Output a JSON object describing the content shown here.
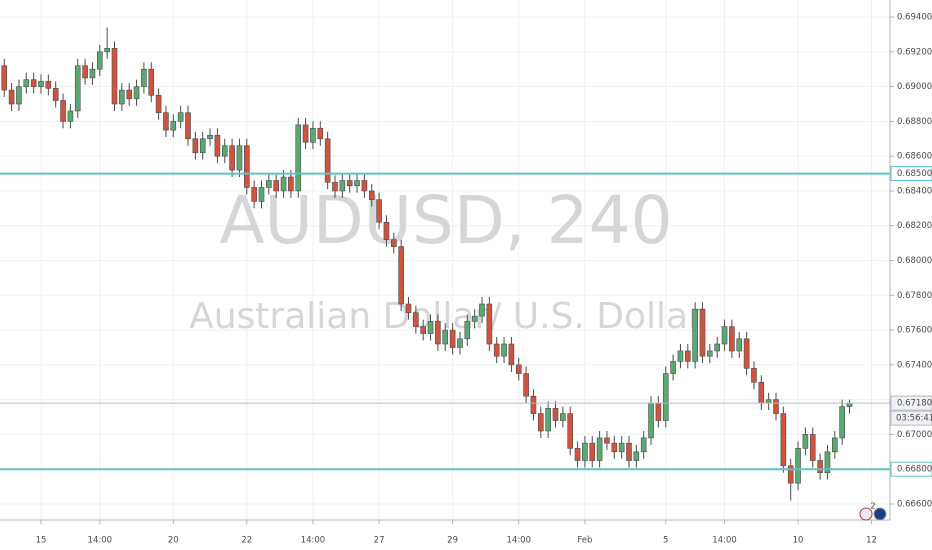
{
  "chart_data": {
    "type": "candlestick",
    "title": "AUDUSD, 240",
    "subtitle": "Australian Dollar/ U.S. Dollar",
    "categories": [
      null,
      null,
      null,
      null,
      null,
      "15",
      null,
      null,
      null,
      null,
      null,
      null,
      null,
      "14:00",
      null,
      null,
      null,
      null,
      null,
      null,
      null,
      null,
      null,
      "20",
      null,
      null,
      null,
      null,
      null,
      null,
      null,
      null,
      null,
      "22",
      null,
      null,
      null,
      null,
      null,
      null,
      null,
      null,
      "14:00",
      null,
      null,
      null,
      null,
      null,
      null,
      null,
      null,
      "27",
      null,
      null,
      null,
      null,
      null,
      null,
      null,
      null,
      null,
      "29",
      null,
      null,
      null,
      null,
      null,
      null,
      null,
      null,
      "14:00",
      null,
      null,
      null,
      null,
      null,
      null,
      null,
      null,
      "Feb",
      null,
      null,
      null,
      null,
      null,
      null,
      null,
      null,
      null,
      null,
      "5",
      null,
      null,
      null,
      null,
      null,
      null,
      null,
      "14:00",
      null,
      null,
      null,
      null,
      null,
      null,
      null,
      null,
      null,
      "10",
      null,
      null,
      null,
      null,
      null,
      null,
      null,
      null,
      null,
      "12"
    ],
    "open": [
      0.6912,
      0.6898,
      0.689,
      0.69,
      0.6904,
      0.69,
      0.6903,
      0.6899,
      0.6892,
      0.688,
      0.6886,
      0.6912,
      0.6905,
      0.691,
      0.692,
      0.6922,
      0.689,
      0.6898,
      0.6893,
      0.69,
      0.691,
      0.6895,
      0.6885,
      0.6875,
      0.688,
      0.6885,
      0.687,
      0.6862,
      0.687,
      0.6872,
      0.686,
      0.6866,
      0.6852,
      0.6866,
      0.6842,
      0.6834,
      0.6842,
      0.6846,
      0.684,
      0.6848,
      0.684,
      0.6878,
      0.6868,
      0.6876,
      0.687,
      0.6845,
      0.684,
      0.6846,
      0.6843,
      0.6846,
      0.684,
      0.6835,
      0.6822,
      0.6812,
      0.6808,
      0.6775,
      0.677,
      0.6762,
      0.6758,
      0.6765,
      0.6752,
      0.676,
      0.675,
      0.6755,
      0.6765,
      0.6768,
      0.6775,
      0.6752,
      0.6745,
      0.6752,
      0.674,
      0.6735,
      0.6722,
      0.6712,
      0.6702,
      0.6715,
      0.6708,
      0.6712,
      0.6692,
      0.6685,
      0.6695,
      0.6685,
      0.6698,
      0.6695,
      0.669,
      0.6695,
      0.6685,
      0.669,
      0.6698,
      0.6718,
      0.6708,
      0.6735,
      0.6742,
      0.6748,
      0.6742,
      0.6772,
      0.6745,
      0.6748,
      0.6752,
      0.6762,
      0.6748,
      0.6755,
      0.6738,
      0.673,
      0.6718,
      0.672,
      0.6712,
      0.6682,
      0.6672,
      0.6692,
      0.67,
      0.6685,
      0.6678,
      0.669,
      0.6698,
      0.6716,
      null,
      null,
      null
    ],
    "high": [
      0.6916,
      0.6902,
      0.6904,
      0.6908,
      0.6908,
      0.6907,
      0.6907,
      0.6903,
      0.6896,
      0.689,
      0.6916,
      0.6916,
      0.6914,
      0.6924,
      0.6934,
      0.6926,
      0.6902,
      0.6902,
      0.6904,
      0.6914,
      0.6914,
      0.6899,
      0.6889,
      0.6884,
      0.6889,
      0.6889,
      0.6874,
      0.6874,
      0.6876,
      0.6876,
      0.687,
      0.687,
      0.687,
      0.687,
      0.6846,
      0.6846,
      0.685,
      0.685,
      0.6852,
      0.6852,
      0.6882,
      0.6882,
      0.688,
      0.688,
      0.6874,
      0.6849,
      0.685,
      0.685,
      0.685,
      0.685,
      0.6844,
      0.6839,
      0.6826,
      0.6816,
      0.6812,
      0.6779,
      0.6774,
      0.6766,
      0.6769,
      0.6769,
      0.6764,
      0.6764,
      0.6759,
      0.6769,
      0.6772,
      0.6779,
      0.6779,
      0.6756,
      0.6756,
      0.6756,
      0.6744,
      0.6739,
      0.6726,
      0.6716,
      0.6719,
      0.6719,
      0.6716,
      0.6716,
      0.6696,
      0.6699,
      0.6699,
      0.6702,
      0.6702,
      0.6699,
      0.6699,
      0.6699,
      0.6694,
      0.6702,
      0.6722,
      0.6722,
      0.6739,
      0.6746,
      0.6752,
      0.6752,
      0.6776,
      0.6776,
      0.6752,
      0.6756,
      0.6766,
      0.6766,
      0.6759,
      0.6759,
      0.6742,
      0.6734,
      0.6724,
      0.6724,
      0.6716,
      0.6686,
      0.6696,
      0.6704,
      0.6704,
      0.6689,
      0.6694,
      0.6702,
      0.672,
      0.672,
      null,
      null,
      null
    ],
    "low": [
      0.6894,
      0.6886,
      0.6886,
      0.6896,
      0.6896,
      0.6896,
      0.6895,
      0.6888,
      0.6876,
      0.6876,
      0.6882,
      0.6901,
      0.6901,
      0.6906,
      0.6916,
      0.6886,
      0.6886,
      0.6889,
      0.6889,
      0.6896,
      0.6891,
      0.6881,
      0.6871,
      0.6871,
      0.6876,
      0.6866,
      0.6858,
      0.6858,
      0.6866,
      0.6856,
      0.6856,
      0.6848,
      0.6848,
      0.6838,
      0.683,
      0.683,
      0.6838,
      0.6836,
      0.6836,
      0.6836,
      0.6836,
      0.6864,
      0.6864,
      0.6866,
      0.6841,
      0.6836,
      0.6836,
      0.6839,
      0.6839,
      0.6836,
      0.6831,
      0.6818,
      0.6808,
      0.6804,
      0.6771,
      0.6766,
      0.6758,
      0.6754,
      0.6754,
      0.6748,
      0.6748,
      0.6746,
      0.6746,
      0.6751,
      0.6761,
      0.6764,
      0.6748,
      0.6741,
      0.6741,
      0.6736,
      0.6731,
      0.6718,
      0.6708,
      0.6698,
      0.6698,
      0.6704,
      0.6704,
      0.6688,
      0.6681,
      0.6681,
      0.6681,
      0.6681,
      0.6691,
      0.6686,
      0.6686,
      0.6681,
      0.6681,
      0.6686,
      0.6694,
      0.6704,
      0.6704,
      0.6731,
      0.6738,
      0.6738,
      0.6738,
      0.6741,
      0.6741,
      0.6744,
      0.6748,
      0.6744,
      0.6744,
      0.6734,
      0.6726,
      0.6714,
      0.6714,
      0.6708,
      0.6678,
      0.6662,
      0.6668,
      0.6688,
      0.6681,
      0.6674,
      0.6674,
      0.6686,
      0.6694,
      0.6712,
      null,
      null,
      null
    ],
    "close": [
      0.6898,
      0.689,
      0.69,
      0.6904,
      0.69,
      0.6903,
      0.6899,
      0.6892,
      0.688,
      0.6886,
      0.6912,
      0.6905,
      0.691,
      0.692,
      0.6922,
      0.689,
      0.6898,
      0.6893,
      0.69,
      0.691,
      0.6895,
      0.6885,
      0.6875,
      0.688,
      0.6885,
      0.687,
      0.6862,
      0.687,
      0.6872,
      0.686,
      0.6866,
      0.6852,
      0.6866,
      0.6842,
      0.6834,
      0.6842,
      0.6846,
      0.684,
      0.6848,
      0.684,
      0.6878,
      0.6868,
      0.6876,
      0.687,
      0.6845,
      0.684,
      0.6846,
      0.6843,
      0.6846,
      0.684,
      0.6835,
      0.6822,
      0.6812,
      0.6808,
      0.6775,
      0.677,
      0.6762,
      0.6758,
      0.6765,
      0.6752,
      0.676,
      0.675,
      0.6755,
      0.6765,
      0.6768,
      0.6775,
      0.6752,
      0.6745,
      0.6752,
      0.674,
      0.6735,
      0.6722,
      0.6712,
      0.6702,
      0.6715,
      0.6708,
      0.6712,
      0.6692,
      0.6685,
      0.6695,
      0.6685,
      0.6698,
      0.6695,
      0.669,
      0.6695,
      0.6685,
      0.669,
      0.6698,
      0.6718,
      0.6708,
      0.6735,
      0.6742,
      0.6748,
      0.6742,
      0.6772,
      0.6745,
      0.6748,
      0.6752,
      0.6762,
      0.6748,
      0.6755,
      0.6738,
      0.673,
      0.6718,
      0.672,
      0.6712,
      0.6682,
      0.6672,
      0.6692,
      0.67,
      0.6685,
      0.6678,
      0.669,
      0.6698,
      0.6716,
      0.6718,
      null,
      null,
      null
    ],
    "up_color": "#5aa872",
    "down_color": "#d0533f",
    "wick_color": "#4a4a4a",
    "ylim": [
      0.66508,
      0.69498
    ],
    "yticks": [
      {
        "value": 0.666,
        "label": "0.66600"
      },
      {
        "value": 0.668,
        "label": "0.66800"
      },
      {
        "value": 0.67,
        "label": "0.67000"
      },
      {
        "value": 0.672,
        "label": "0.67200"
      },
      {
        "value": 0.674,
        "label": "0.67400"
      },
      {
        "value": 0.676,
        "label": "0.67600"
      },
      {
        "value": 0.678,
        "label": "0.67800"
      },
      {
        "value": 0.68,
        "label": "0.68000"
      },
      {
        "value": 0.682,
        "label": "0.68200"
      },
      {
        "value": 0.684,
        "label": "0.68400"
      },
      {
        "value": 0.686,
        "label": "0.68600"
      },
      {
        "value": 0.688,
        "label": "0.68800"
      },
      {
        "value": 0.69,
        "label": "0.69000"
      },
      {
        "value": 0.692,
        "label": "0.69200"
      },
      {
        "value": 0.694,
        "label": "0.69400"
      }
    ],
    "grid": true,
    "hlines": [
      {
        "value": 0.685,
        "label": "0.68500",
        "color": "#5cc4c4"
      },
      {
        "value": 0.668,
        "label": "0.66800",
        "color": "#5cc4c4"
      }
    ],
    "price_line": {
      "value": 0.6718,
      "label": "0.67180",
      "countdown": "03:56:41",
      "color": "#b7bac2"
    },
    "badge": "2"
  }
}
